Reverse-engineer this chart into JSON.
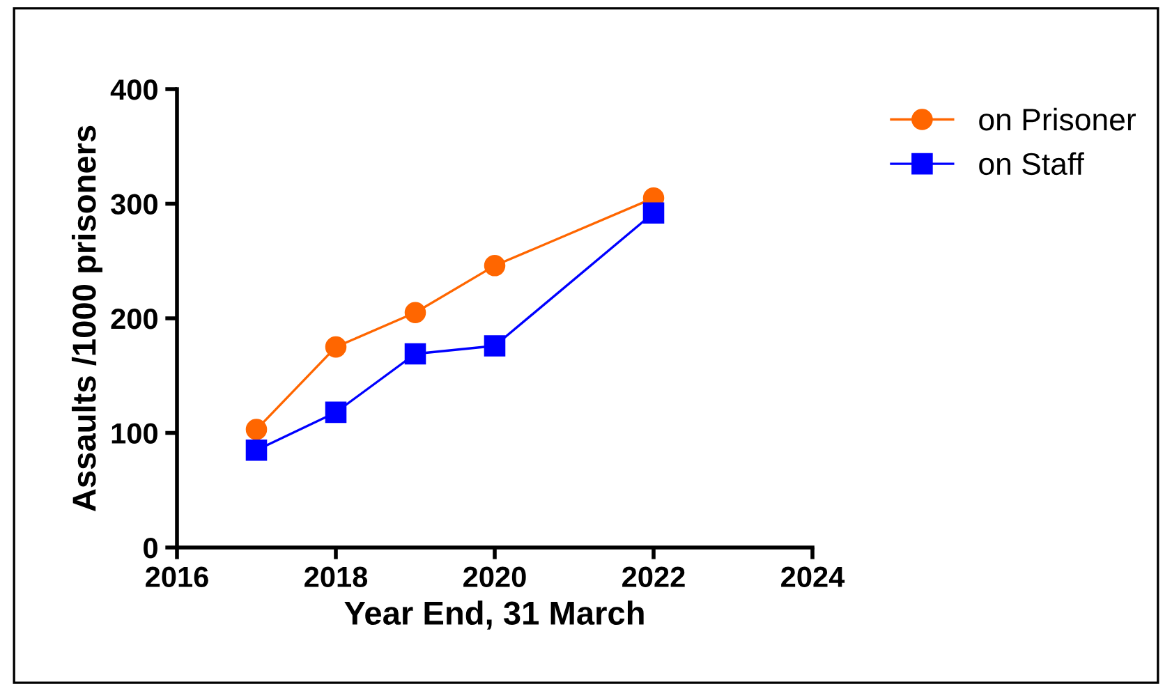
{
  "chart_data": {
    "type": "line",
    "xlabel": "Year End, 31 March",
    "ylabel": "Assaults /1000 prisoners",
    "xlim": [
      2016,
      2024
    ],
    "xticks": [
      2016,
      2018,
      2020,
      2022,
      2024
    ],
    "ylim": [
      0,
      400
    ],
    "yticks": [
      0,
      100,
      200,
      300,
      400
    ],
    "grid": false,
    "legend": "top right",
    "series": [
      {
        "name": "on Prisoner",
        "color": "#ff6600",
        "marker": "circle",
        "x": [
          2017,
          2018,
          2019,
          2020,
          2022
        ],
        "values": [
          103,
          175,
          205,
          246,
          305
        ]
      },
      {
        "name": "on Staff",
        "color": "#0000ff",
        "marker": "square",
        "x": [
          2017,
          2018,
          2019,
          2020,
          2022
        ],
        "values": [
          85,
          118,
          169,
          176,
          292
        ]
      }
    ]
  }
}
